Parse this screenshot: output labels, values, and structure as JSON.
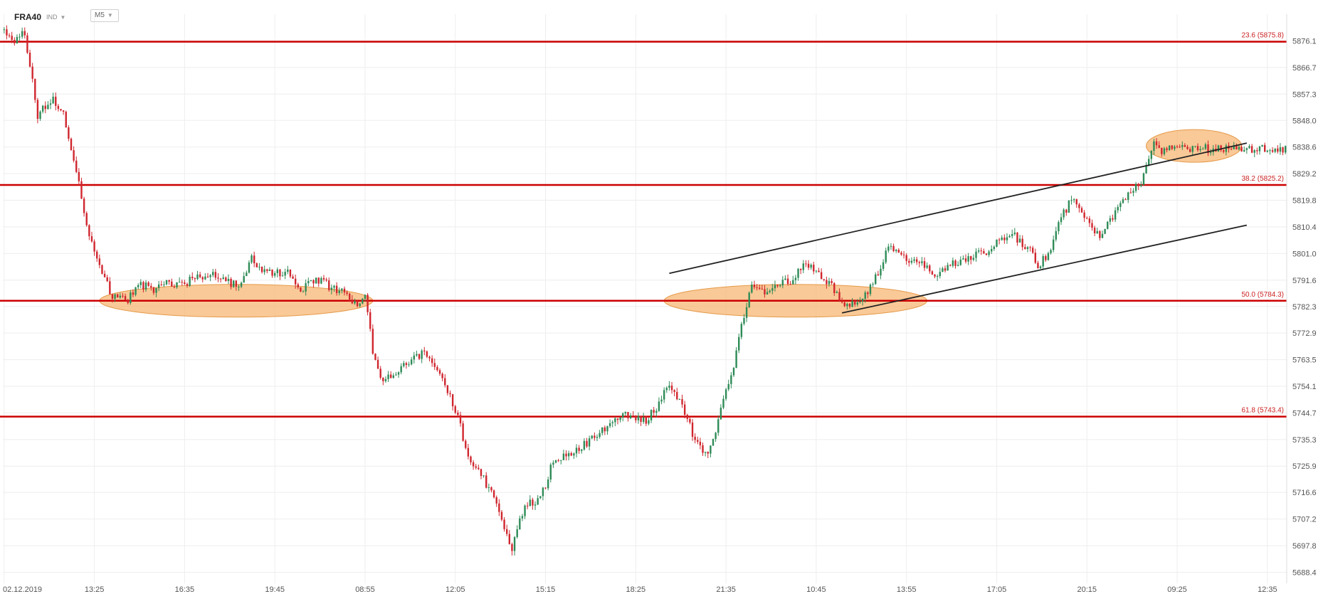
{
  "header": {
    "symbol": "FRA40",
    "indicator_label": "IND",
    "timeframe": "M5"
  },
  "colors": {
    "bull": "#2e8b57",
    "bear": "#d0262e",
    "fib_line": "#cc0000",
    "fib_label": "#cc2222",
    "zone_fill": "#f6b26b",
    "zone_stroke": "#e59a4a",
    "trendline": "#222222",
    "grid": "#eeeeee",
    "axis_text": "#555555"
  },
  "chart_data": {
    "type": "candlestick",
    "title": "",
    "xlabel": "",
    "ylabel": "",
    "ylim": [
      5684.5,
      5883.0
    ],
    "y_ticks": [
      5876.1,
      5866.7,
      5857.3,
      5848.0,
      5838.6,
      5829.2,
      5819.8,
      5810.4,
      5801.0,
      5791.6,
      5782.3,
      5772.9,
      5763.5,
      5754.1,
      5744.7,
      5735.3,
      5725.9,
      5716.6,
      5707.2,
      5697.8,
      5688.4
    ],
    "x_ticks": [
      "02.12.2019",
      "13:25",
      "16:35",
      "19:45",
      "08:55",
      "12:05",
      "15:15",
      "18:25",
      "21:35",
      "10:45",
      "13:55",
      "17:05",
      "20:15",
      "09:25",
      "12:35"
    ],
    "x_tick_index": [
      0,
      35,
      70,
      105,
      140,
      175,
      210,
      245,
      280,
      315,
      350,
      385,
      420,
      455,
      490
    ],
    "grid": true,
    "fib_levels": [
      {
        "level": "23.6",
        "price": 5875.8,
        "label": "23.6 (5875.8)"
      },
      {
        "level": "38.2",
        "price": 5825.2,
        "label": "38.2 (5825.2)"
      },
      {
        "level": "50.0",
        "price": 5784.3,
        "label": "50.0 (5784.3)"
      },
      {
        "level": "61.8",
        "price": 5743.4,
        "label": "61.8 (5743.4)"
      }
    ],
    "zones": [
      {
        "x_start": 37,
        "x_end": 143,
        "price": 5784.3
      },
      {
        "x_start": 256,
        "x_end": 358,
        "price": 5784.3
      },
      {
        "x_start": 443,
        "x_end": 480,
        "price": 5839.0
      }
    ],
    "trendlines": [
      {
        "x1": 258,
        "y1": 5794.0,
        "x2": 482,
        "y2": 5840.0
      },
      {
        "x1": 325,
        "y1": 5780.0,
        "x2": 482,
        "y2": 5811.0
      }
    ],
    "anchors": [
      [
        0,
        5880
      ],
      [
        3,
        5876
      ],
      [
        8,
        5879
      ],
      [
        10,
        5868
      ],
      [
        13,
        5850
      ],
      [
        19,
        5855
      ],
      [
        23,
        5850
      ],
      [
        28,
        5830
      ],
      [
        32,
        5810
      ],
      [
        36,
        5800
      ],
      [
        41,
        5787
      ],
      [
        47,
        5784
      ],
      [
        53,
        5790
      ],
      [
        58,
        5788
      ],
      [
        62,
        5791
      ],
      [
        66,
        5790
      ],
      [
        75,
        5792
      ],
      [
        82,
        5794
      ],
      [
        91,
        5789
      ],
      [
        96,
        5799
      ],
      [
        101,
        5795
      ],
      [
        110,
        5794
      ],
      [
        115,
        5788
      ],
      [
        121,
        5792
      ],
      [
        127,
        5789
      ],
      [
        132,
        5787
      ],
      [
        137,
        5783
      ],
      [
        140,
        5785
      ],
      [
        143,
        5767
      ],
      [
        146,
        5756
      ],
      [
        153,
        5760
      ],
      [
        157,
        5763
      ],
      [
        163,
        5766
      ],
      [
        170,
        5756
      ],
      [
        175,
        5746
      ],
      [
        180,
        5730
      ],
      [
        185,
        5723
      ],
      [
        190,
        5715
      ],
      [
        194,
        5705
      ],
      [
        197,
        5697
      ],
      [
        202,
        5712
      ],
      [
        208,
        5714
      ],
      [
        212,
        5725
      ],
      [
        218,
        5730
      ],
      [
        226,
        5734
      ],
      [
        232,
        5738
      ],
      [
        238,
        5743
      ],
      [
        244,
        5744
      ],
      [
        249,
        5742
      ],
      [
        254,
        5748
      ],
      [
        258,
        5755
      ],
      [
        263,
        5748
      ],
      [
        268,
        5735
      ],
      [
        273,
        5730
      ],
      [
        278,
        5745
      ],
      [
        283,
        5762
      ],
      [
        287,
        5779
      ],
      [
        290,
        5790
      ],
      [
        296,
        5786
      ],
      [
        302,
        5792
      ],
      [
        306,
        5790
      ],
      [
        310,
        5798
      ],
      [
        316,
        5793
      ],
      [
        321,
        5790
      ],
      [
        326,
        5783
      ],
      [
        331,
        5784
      ],
      [
        337,
        5790
      ],
      [
        343,
        5804
      ],
      [
        350,
        5798
      ],
      [
        356,
        5798
      ],
      [
        361,
        5794
      ],
      [
        367,
        5797
      ],
      [
        374,
        5800
      ],
      [
        380,
        5801
      ],
      [
        386,
        5806
      ],
      [
        392,
        5807
      ],
      [
        397,
        5803
      ],
      [
        401,
        5797
      ],
      [
        405,
        5800
      ],
      [
        408,
        5810
      ],
      [
        414,
        5820
      ],
      [
        420,
        5814
      ],
      [
        425,
        5806
      ],
      [
        432,
        5818
      ],
      [
        437,
        5822
      ],
      [
        441,
        5826
      ],
      [
        446,
        5840
      ],
      [
        449,
        5836
      ],
      [
        452,
        5838
      ]
    ],
    "seed": 40
  }
}
